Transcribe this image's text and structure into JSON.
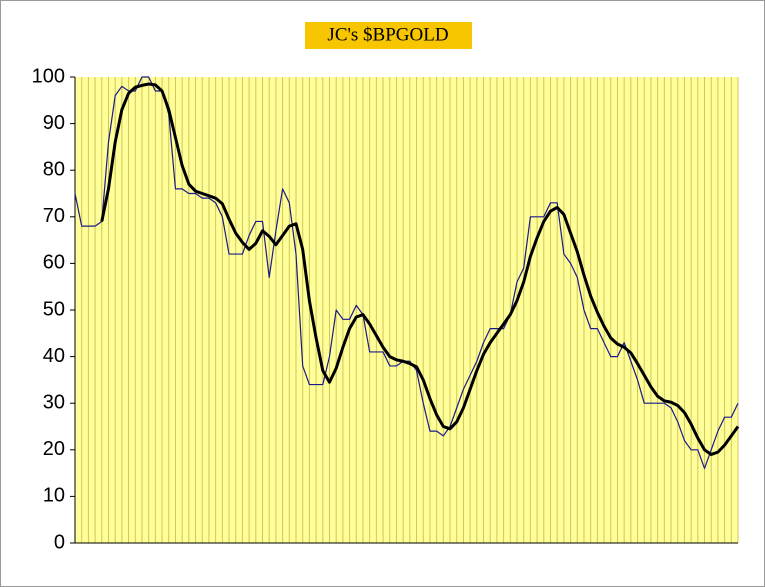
{
  "chart_data": {
    "type": "line",
    "title": "JC's $BPGOLD",
    "title_color": "#f7c600",
    "background": "#ffff99",
    "grid": true,
    "grid_color": "#d4c45a",
    "categories": [
      null,
      null,
      null,
      null,
      null,
      null,
      null,
      null,
      null,
      null,
      null,
      null,
      null,
      null,
      null,
      null,
      null,
      null,
      null,
      null,
      null,
      null,
      null,
      null,
      null,
      null,
      null,
      null,
      null,
      null,
      null,
      null,
      null,
      null,
      null,
      null,
      null,
      null,
      null,
      null,
      null,
      null,
      null,
      null,
      null,
      null,
      null,
      null,
      null,
      null,
      null,
      null,
      null,
      null,
      null,
      null,
      null,
      null,
      null,
      null,
      null,
      null,
      null,
      null,
      null,
      null,
      null,
      null,
      null,
      null,
      null,
      null,
      null,
      null,
      null,
      null,
      null,
      null,
      null,
      null,
      null,
      null,
      null,
      null,
      null,
      null,
      null,
      null,
      null,
      null,
      null,
      null,
      null,
      null,
      null,
      null,
      null,
      null,
      null,
      null
    ],
    "ylim": [
      0,
      100
    ],
    "yticks": [
      0,
      10,
      20,
      30,
      40,
      50,
      60,
      70,
      80,
      90,
      100
    ],
    "series": [
      {
        "color": "#1a1a8c",
        "width": 1.2,
        "values": [
          75,
          68,
          68,
          68,
          69,
          86,
          96,
          98,
          97,
          97,
          100,
          100,
          97,
          97,
          92,
          76,
          76,
          75,
          75,
          74,
          74,
          73,
          70,
          62,
          62,
          62,
          66,
          69,
          69,
          57,
          67,
          76,
          73,
          62,
          38,
          34,
          34,
          34,
          40,
          50,
          48,
          48,
          51,
          49,
          41,
          41,
          41,
          38,
          38,
          39,
          39,
          37,
          30,
          24,
          24,
          23,
          25,
          29,
          33,
          36,
          39,
          43,
          46,
          46,
          46,
          49,
          56,
          59,
          70,
          70,
          70,
          73,
          73,
          62,
          60,
          57,
          50,
          46,
          46,
          43,
          40,
          40,
          43,
          39,
          35,
          30,
          30,
          30,
          30,
          29,
          26,
          22,
          20,
          20,
          16,
          20,
          24,
          27,
          27,
          30
        ]
      },
      {
        "color": "#000000",
        "width": 3,
        "values": [
          null,
          null,
          null,
          null,
          69,
          76,
          86,
          93,
          96.5,
          97.8,
          98.2,
          98.5,
          98.3,
          97,
          93,
          87,
          81,
          77,
          75.5,
          75,
          74.5,
          74,
          72.8,
          69.5,
          66.5,
          64.5,
          63,
          64.3,
          67,
          65.8,
          64,
          66,
          68,
          68.5,
          63,
          52,
          44,
          37,
          34.5,
          37.5,
          42,
          46,
          48.5,
          49,
          47,
          44.5,
          42,
          40,
          39.3,
          39,
          38.5,
          37.8,
          35,
          31,
          27.5,
          25,
          24.5,
          26,
          29,
          33,
          37,
          40.5,
          43,
          45,
          47,
          49,
          52,
          56,
          61.5,
          65.5,
          69,
          71.2,
          72,
          70.5,
          66.5,
          62.5,
          57.5,
          53,
          49.5,
          46.5,
          44,
          42.7,
          42,
          40.8,
          38.5,
          36,
          33.5,
          31.5,
          30.5,
          30.2,
          29.5,
          28,
          25.5,
          22.5,
          20,
          19,
          19.5,
          21,
          23,
          25
        ]
      }
    ]
  }
}
